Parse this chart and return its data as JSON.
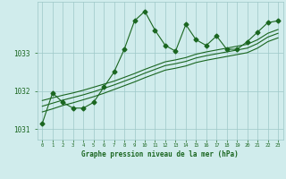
{
  "bg_color": "#d0ecec",
  "grid_color": "#9dc8c8",
  "line_color": "#1a6620",
  "xlabel": "Graphe pression niveau de la mer (hPa)",
  "ylim": [
    1030.72,
    1034.35
  ],
  "xlim": [
    -0.5,
    23.5
  ],
  "yticks": [
    1031,
    1032,
    1033
  ],
  "xticks": [
    0,
    1,
    2,
    3,
    4,
    5,
    6,
    7,
    8,
    9,
    10,
    11,
    12,
    13,
    14,
    15,
    16,
    17,
    18,
    19,
    20,
    21,
    22,
    23
  ],
  "main_series": [
    1031.15,
    1031.95,
    1031.7,
    1031.55,
    1031.55,
    1031.7,
    1032.1,
    1032.5,
    1033.1,
    1033.85,
    1034.1,
    1033.6,
    1033.2,
    1033.05,
    1033.75,
    1033.35,
    1033.2,
    1033.45,
    1033.1,
    1033.1,
    1033.3,
    1033.55,
    1033.8,
    1033.85
  ],
  "line2": [
    1031.75,
    1031.82,
    1031.89,
    1031.95,
    1032.02,
    1032.1,
    1032.18,
    1032.26,
    1032.36,
    1032.46,
    1032.57,
    1032.67,
    1032.77,
    1032.82,
    1032.88,
    1032.97,
    1033.03,
    1033.08,
    1033.13,
    1033.18,
    1033.23,
    1033.35,
    1033.52,
    1033.62
  ],
  "line3": [
    1031.6,
    1031.68,
    1031.76,
    1031.83,
    1031.9,
    1031.98,
    1032.07,
    1032.16,
    1032.26,
    1032.36,
    1032.47,
    1032.57,
    1032.67,
    1032.72,
    1032.78,
    1032.87,
    1032.93,
    1032.98,
    1033.03,
    1033.08,
    1033.13,
    1033.25,
    1033.42,
    1033.52
  ],
  "line4": [
    1031.45,
    1031.53,
    1031.62,
    1031.69,
    1031.77,
    1031.85,
    1031.94,
    1032.04,
    1032.14,
    1032.24,
    1032.35,
    1032.45,
    1032.55,
    1032.6,
    1032.66,
    1032.75,
    1032.81,
    1032.86,
    1032.91,
    1032.96,
    1033.01,
    1033.13,
    1033.3,
    1033.4
  ],
  "marker": "D",
  "markersize": 2.5,
  "linewidth": 0.8
}
